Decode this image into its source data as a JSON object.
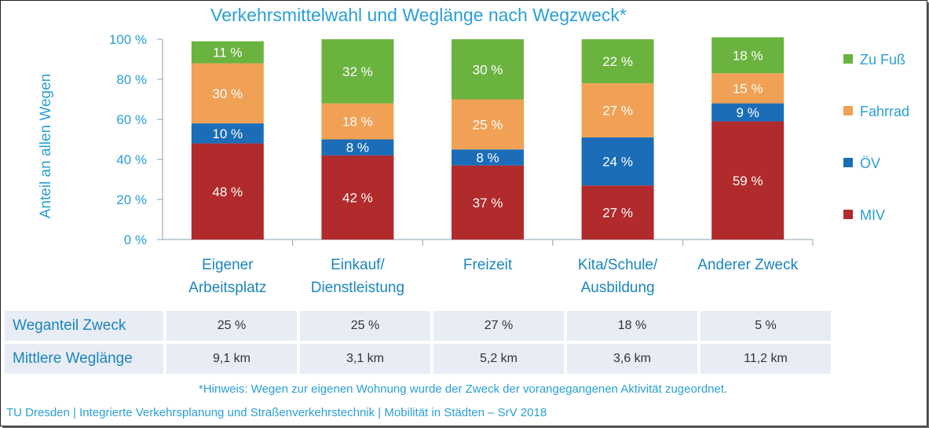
{
  "chart_data": {
    "type": "bar",
    "stacked": true,
    "title": "Verkehrsmittelwahl und Weglänge nach Wegzweck*",
    "ylabel": "Anteil an allen Wegen",
    "ylim": [
      0,
      100
    ],
    "yticks": [
      "0 %",
      "20 %",
      "40 %",
      "60 %",
      "80 %",
      "100 %"
    ],
    "categories": [
      [
        "Eigener",
        "Arbeitsplatz"
      ],
      [
        "Einkauf/",
        "Dienstleistung"
      ],
      [
        "Freizeit"
      ],
      [
        "Kita/Schule/",
        "Ausbildung"
      ],
      [
        "Anderer Zweck"
      ]
    ],
    "series": [
      {
        "name": "MIV",
        "color": "#b12a2c",
        "values": [
          48,
          42,
          37,
          27,
          59
        ],
        "labels": [
          "48 %",
          "42 %",
          "37 %",
          "27 %",
          "59 %"
        ]
      },
      {
        "name": "ÖV",
        "color": "#1b6db8",
        "values": [
          10,
          8,
          8,
          24,
          9
        ],
        "labels": [
          "10 %",
          "8 %",
          "8 %",
          "24 %",
          "9 %"
        ]
      },
      {
        "name": "Fahrrad",
        "color": "#f0a155",
        "values": [
          30,
          18,
          25,
          27,
          15
        ],
        "labels": [
          "30 %",
          "18 %",
          "25 %",
          "27 %",
          "15 %"
        ]
      },
      {
        "name": "Zu Fuß",
        "color": "#6bb33f",
        "values": [
          11,
          32,
          30,
          22,
          18
        ],
        "labels": [
          "11 %",
          "32 %",
          "30 %",
          "22 %",
          "18 %"
        ]
      }
    ],
    "legend_position": "right"
  },
  "table": {
    "rows": [
      {
        "label": "Weganteil Zweck",
        "values": [
          "25 %",
          "25 %",
          "27 %",
          "18 %",
          "5 %"
        ]
      },
      {
        "label": "Mittlere Weglänge",
        "values": [
          "9,1  km",
          "3,1  km",
          "5,2  km",
          "3,6  km",
          "11,2  km"
        ]
      }
    ]
  },
  "note": "*Hinweis: Wegen zur eigenen Wohnung wurde der Zweck der vorangegangenen Aktivität zugeordnet.",
  "footer": "TU Dresden | Integrierte Verkehrsplanung und Straßenverkehrstechnik | Mobilität in Städten – SrV 2018"
}
